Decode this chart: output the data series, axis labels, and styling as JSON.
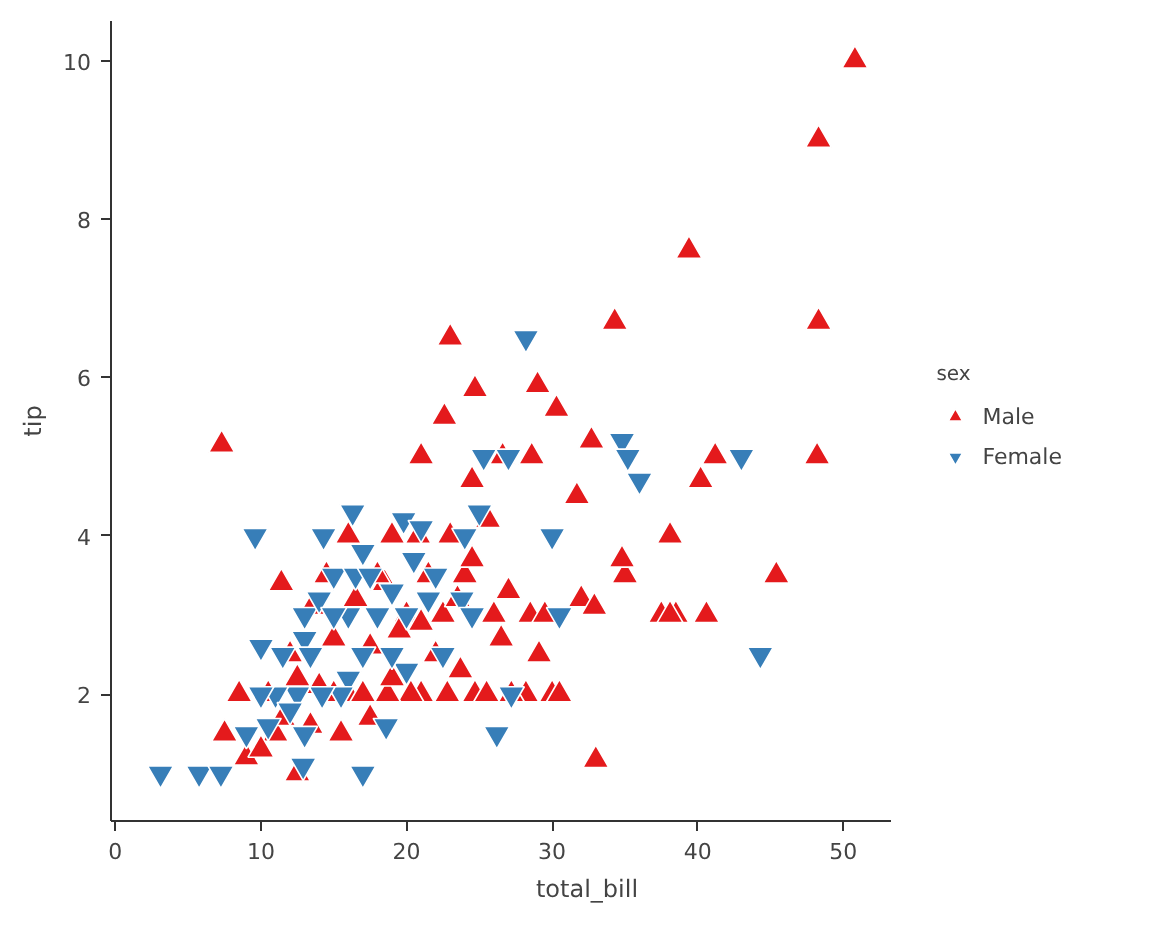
{
  "chart_data": {
    "type": "scatter",
    "xlabel": "total_bill",
    "ylabel": "tip",
    "legend_title": "sex",
    "legend": "right",
    "grid": false,
    "xlim": [
      -0.3,
      53.3
    ],
    "ylim": [
      0.4,
      10.5
    ],
    "xticks": [
      0,
      10,
      20,
      30,
      40,
      50
    ],
    "yticks": [
      2,
      4,
      6,
      8,
      10
    ],
    "series": [
      {
        "name": "Male",
        "color": "#e41a1c",
        "marker": "triangle",
        "x": [
          50.8,
          48.3,
          39.4,
          48.3,
          34.3,
          23.0,
          24.7,
          22.6,
          29.0,
          30.3,
          32.7,
          21.0,
          26.6,
          41.2,
          48.2,
          40.2,
          28.6,
          7.3,
          31.7,
          38.1,
          25.6,
          24.5,
          35.0,
          34.8,
          45.4,
          32.0,
          32.9,
          37.5,
          38.5,
          40.6,
          38.1,
          33.0,
          30.0,
          30.5,
          28.2,
          29.1,
          27.2,
          24.7,
          25.5,
          23.7,
          21.0,
          22.0,
          20.3,
          18.7,
          16.0,
          17.0,
          15.0,
          11.0,
          12.5,
          8.5,
          7.5,
          9.0,
          10.0,
          11.5,
          13.4,
          14.0,
          15.5,
          17.5,
          19.0,
          20.0,
          18.5,
          21.5,
          22.5,
          23.5,
          20.8,
          19.0,
          16.0,
          13.5,
          11.4,
          12.0,
          15.0,
          17.5,
          19.5,
          23.0,
          24.0,
          26.0,
          27.0,
          28.5,
          29.5,
          22.8,
          26.5,
          24.5,
          21.0,
          18.0,
          14.5,
          16.5,
          12.5,
          10.5
        ],
        "values": [
          10.0,
          9.0,
          7.6,
          6.7,
          6.7,
          6.5,
          5.85,
          5.5,
          5.9,
          5.6,
          5.2,
          5.0,
          5.0,
          5.0,
          5.0,
          4.7,
          5.0,
          5.15,
          4.5,
          4.0,
          4.2,
          4.7,
          3.5,
          3.7,
          3.5,
          3.2,
          3.1,
          3.0,
          3.0,
          3.0,
          3.0,
          1.17,
          2.0,
          2.0,
          2.0,
          2.5,
          2.0,
          2.0,
          2.0,
          2.3,
          2.0,
          2.5,
          2.0,
          2.0,
          2.0,
          2.0,
          2.0,
          1.5,
          1.0,
          2.0,
          1.5,
          1.2,
          1.3,
          1.7,
          1.6,
          2.1,
          1.5,
          1.7,
          2.2,
          3.0,
          3.4,
          3.5,
          3.0,
          3.2,
          4.0,
          4.0,
          4.0,
          3.1,
          3.4,
          2.5,
          2.7,
          2.6,
          2.8,
          4.0,
          3.5,
          3.0,
          3.3,
          3.0,
          3.0,
          2.0,
          2.7,
          3.7,
          2.9,
          3.5,
          3.5,
          3.2,
          2.2,
          2.0
        ]
      },
      {
        "name": "Female",
        "color": "#377eb8",
        "marker": "triangle_down",
        "x": [
          3.1,
          5.75,
          7.25,
          12.9,
          17.0,
          28.2,
          9.6,
          14.3,
          16.3,
          19.8,
          21.0,
          25.3,
          27.0,
          34.8,
          35.2,
          36.0,
          43.0,
          44.3,
          30.0,
          26.2,
          18.6,
          10.0,
          11.5,
          13.0,
          13.4,
          15.0,
          16.5,
          17.5,
          19.0,
          20.0,
          18.0,
          17.0,
          16.0,
          15.5,
          14.2,
          12.5,
          11.0,
          10.0,
          9.0,
          10.5,
          13.0,
          12.0,
          20.0,
          22.0,
          23.8,
          21.5,
          24.0,
          25.0,
          30.5,
          27.2,
          16.0,
          13.0,
          14.0,
          20.5,
          24.5,
          22.5,
          15.0,
          19.0,
          17.0
        ],
        "values": [
          1.0,
          1.0,
          1.0,
          1.1,
          1.0,
          6.5,
          4.0,
          4.0,
          4.3,
          4.2,
          4.1,
          5.0,
          5.0,
          5.2,
          5.0,
          4.7,
          5.0,
          2.5,
          4.0,
          1.5,
          1.6,
          2.6,
          2.5,
          2.7,
          2.5,
          3.5,
          3.5,
          3.5,
          3.3,
          3.0,
          3.0,
          2.5,
          2.2,
          2.0,
          2.0,
          2.0,
          2.0,
          2.0,
          1.5,
          1.6,
          1.5,
          1.8,
          2.3,
          3.5,
          3.2,
          3.2,
          4.0,
          4.3,
          3.0,
          2.0,
          3.0,
          3.0,
          3.2,
          3.7,
          3.0,
          2.5,
          3.0,
          2.5,
          3.8
        ]
      }
    ]
  }
}
